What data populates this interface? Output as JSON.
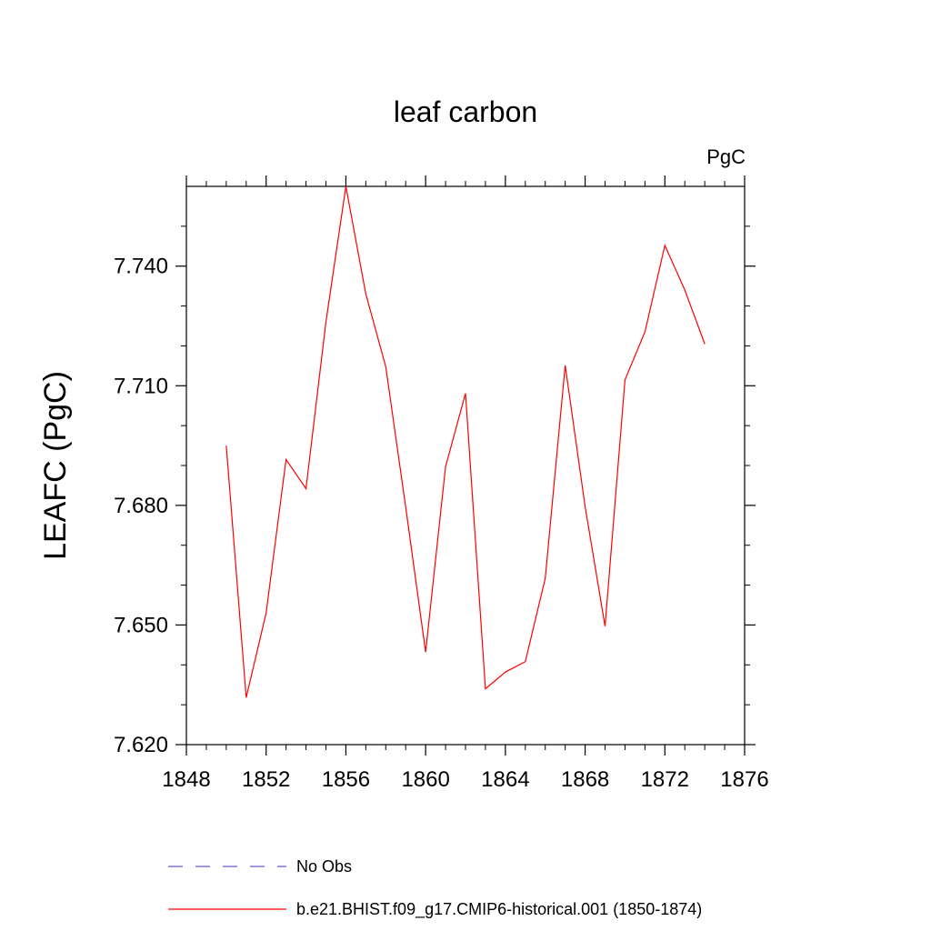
{
  "chart_data": {
    "type": "line",
    "title": "leaf carbon",
    "units_label": "PgC",
    "xlabel": "",
    "ylabel": "LEAFC  (PgC)",
    "xlim": [
      1848,
      1876
    ],
    "ylim": [
      7.62,
      7.76
    ],
    "x_major_ticks": [
      1848,
      1852,
      1856,
      1860,
      1864,
      1868,
      1872,
      1876
    ],
    "x_tick_labels": [
      "1848",
      "1852",
      "1856",
      "1860",
      "1864",
      "1868",
      "1872",
      "1876"
    ],
    "y_major_ticks": [
      7.62,
      7.65,
      7.68,
      7.71,
      7.74
    ],
    "y_tick_labels": [
      "7.620",
      "7.650",
      "7.680",
      "7.710",
      "7.740"
    ],
    "grid": false,
    "legend_position": "bottom",
    "series": [
      {
        "name": "No Obs",
        "color": "#6a5acd",
        "dash": "dashed",
        "x": [],
        "values": []
      },
      {
        "name": "b.e21.BHIST.f09_g17.CMIP6-historical.001 (1850-1874)",
        "color": "#ff0000",
        "dash": "solid",
        "x": [
          1850,
          1851,
          1852,
          1853,
          1854,
          1855,
          1856,
          1857,
          1858,
          1859,
          1860,
          1861,
          1862,
          1863,
          1864,
          1865,
          1866,
          1867,
          1868,
          1869,
          1870,
          1871,
          1872,
          1873,
          1874
        ],
        "values": [
          7.695,
          7.6318,
          7.653,
          7.6915,
          7.6842,
          7.726,
          7.76,
          7.733,
          7.7148,
          7.6796,
          7.6432,
          7.6897,
          7.7081,
          7.634,
          7.6382,
          7.6408,
          7.6617,
          7.7151,
          7.6797,
          7.6497,
          7.7115,
          7.7235,
          7.7452,
          7.734,
          7.7205
        ]
      }
    ]
  }
}
